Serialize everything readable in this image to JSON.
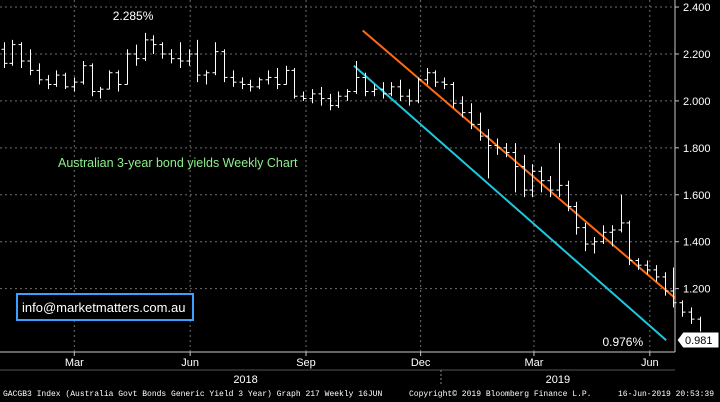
{
  "chart_data": {
    "type": "ohlc",
    "title": "Australian 3-year bond yields Weekly Chart",
    "xlabel": "",
    "ylabel": "",
    "ylim": [
      0.93,
      2.43
    ],
    "grid": true,
    "y_ticks": [
      "1.200",
      "1.400",
      "1.600",
      "1.800",
      "2.000",
      "2.200",
      "2.400"
    ],
    "y_tick_values": [
      1.2,
      1.4,
      1.6,
      1.8,
      2.0,
      2.2,
      2.4
    ],
    "x_ticks": [
      "Mar",
      "Jun",
      "Sep",
      "Dec",
      "Mar",
      "Jun"
    ],
    "x_tick_dates": [
      "2018-03-01",
      "2018-06-01",
      "2018-09-01",
      "2018-12-01",
      "2019-03-01",
      "2019-06-01"
    ],
    "year_labels": [
      {
        "label": "2018",
        "date": "2018-07-15"
      },
      {
        "label": "2019",
        "date": "2019-03-20"
      }
    ],
    "x_range": [
      "2018-01-01",
      "2019-06-21"
    ],
    "series_color": "#ffffff",
    "weeks_start": "2018-01-01",
    "bars": [
      [
        2.22,
        2.25,
        2.14,
        2.16
      ],
      [
        2.16,
        2.26,
        2.15,
        2.24
      ],
      [
        2.24,
        2.25,
        2.14,
        2.17
      ],
      [
        2.17,
        2.22,
        2.11,
        2.13
      ],
      [
        2.13,
        2.16,
        2.07,
        2.09
      ],
      [
        2.09,
        2.11,
        2.05,
        2.07
      ],
      [
        2.07,
        2.13,
        2.06,
        2.11
      ],
      [
        2.11,
        2.12,
        2.05,
        2.06
      ],
      [
        2.06,
        2.1,
        2.04,
        2.08
      ],
      [
        2.08,
        2.17,
        2.07,
        2.15
      ],
      [
        2.15,
        2.16,
        2.02,
        2.04
      ],
      [
        2.04,
        2.06,
        2.01,
        2.05
      ],
      [
        2.05,
        2.13,
        2.05,
        2.12
      ],
      [
        2.12,
        2.13,
        2.04,
        2.07
      ],
      [
        2.07,
        2.22,
        2.07,
        2.2
      ],
      [
        2.2,
        2.24,
        2.15,
        2.18
      ],
      [
        2.18,
        2.29,
        2.17,
        2.26
      ],
      [
        2.26,
        2.28,
        2.2,
        2.24
      ],
      [
        2.24,
        2.25,
        2.18,
        2.2
      ],
      [
        2.2,
        2.22,
        2.16,
        2.18
      ],
      [
        2.18,
        2.25,
        2.14,
        2.17
      ],
      [
        2.17,
        2.22,
        2.15,
        2.2
      ],
      [
        2.2,
        2.26,
        2.08,
        2.11
      ],
      [
        2.11,
        2.13,
        2.07,
        2.12
      ],
      [
        2.12,
        2.25,
        2.11,
        2.21
      ],
      [
        2.21,
        2.22,
        2.08,
        2.1
      ],
      [
        2.1,
        2.13,
        2.06,
        2.08
      ],
      [
        2.08,
        2.1,
        2.05,
        2.07
      ],
      [
        2.07,
        2.09,
        2.04,
        2.06
      ],
      [
        2.06,
        2.1,
        2.05,
        2.09
      ],
      [
        2.09,
        2.13,
        2.07,
        2.1
      ],
      [
        2.1,
        2.14,
        2.05,
        2.07
      ],
      [
        2.07,
        2.15,
        2.07,
        2.13
      ],
      [
        2.13,
        2.14,
        2.01,
        2.02
      ],
      [
        2.02,
        2.04,
        2.0,
        2.01
      ],
      [
        2.01,
        2.05,
        1.99,
        2.03
      ],
      [
        2.03,
        2.06,
        1.98,
        2.01
      ],
      [
        2.01,
        2.03,
        1.96,
        1.98
      ],
      [
        1.98,
        2.04,
        1.97,
        2.02
      ],
      [
        2.02,
        2.05,
        2.0,
        2.04
      ],
      [
        2.04,
        2.17,
        2.03,
        2.1
      ],
      [
        2.1,
        2.12,
        2.02,
        2.04
      ],
      [
        2.04,
        2.07,
        2.02,
        2.05
      ],
      [
        2.05,
        2.08,
        2.01,
        2.03
      ],
      [
        2.03,
        2.08,
        2.02,
        2.06
      ],
      [
        2.06,
        2.09,
        2.0,
        2.02
      ],
      [
        2.02,
        2.05,
        1.98,
        2.0
      ],
      [
        2.0,
        2.1,
        1.99,
        2.09
      ],
      [
        2.09,
        2.14,
        2.07,
        2.12
      ],
      [
        2.12,
        2.13,
        2.06,
        2.08
      ],
      [
        2.08,
        2.1,
        2.05,
        2.07
      ],
      [
        2.07,
        2.08,
        1.97,
        1.99
      ],
      [
        1.99,
        2.02,
        1.93,
        1.95
      ],
      [
        1.95,
        1.99,
        1.88,
        1.9
      ],
      [
        1.9,
        1.95,
        1.83,
        1.85
      ],
      [
        1.85,
        1.88,
        1.67,
        1.81
      ],
      [
        1.81,
        1.84,
        1.77,
        1.8
      ],
      [
        1.8,
        1.82,
        1.76,
        1.78
      ],
      [
        1.78,
        1.82,
        1.61,
        1.72
      ],
      [
        1.72,
        1.77,
        1.59,
        1.62
      ],
      [
        1.62,
        1.73,
        1.59,
        1.7
      ],
      [
        1.7,
        1.72,
        1.61,
        1.66
      ],
      [
        1.66,
        1.68,
        1.59,
        1.62
      ],
      [
        1.62,
        1.82,
        1.59,
        1.64
      ],
      [
        1.64,
        1.66,
        1.53,
        1.55
      ],
      [
        1.55,
        1.57,
        1.43,
        1.46
      ],
      [
        1.46,
        1.48,
        1.36,
        1.39
      ],
      [
        1.39,
        1.42,
        1.35,
        1.4
      ],
      [
        1.4,
        1.47,
        1.39,
        1.44
      ],
      [
        1.44,
        1.47,
        1.38,
        1.45
      ],
      [
        1.45,
        1.6,
        1.44,
        1.48
      ],
      [
        1.48,
        1.49,
        1.3,
        1.32
      ],
      [
        1.32,
        1.33,
        1.28,
        1.3
      ],
      [
        1.3,
        1.32,
        1.26,
        1.28
      ],
      [
        1.28,
        1.3,
        1.23,
        1.25
      ],
      [
        1.25,
        1.27,
        1.17,
        1.19
      ],
      [
        1.19,
        1.29,
        1.12,
        1.14
      ],
      [
        1.14,
        1.15,
        1.08,
        1.1
      ],
      [
        1.1,
        1.12,
        1.05,
        1.07
      ],
      [
        1.07,
        1.08,
        0.976,
        0.981
      ]
    ],
    "trendlines": [
      {
        "name": "upper resistance",
        "color": "#ff6a13",
        "from": {
          "date": "2018-10-16",
          "y": 2.3
        },
        "to": {
          "date": "2019-06-21",
          "y": 1.16
        }
      },
      {
        "name": "lower support",
        "color": "#1ec8e0",
        "from": {
          "date": "2018-10-09",
          "y": 2.15
        },
        "to": {
          "date": "2019-06-14",
          "y": 0.98
        }
      }
    ],
    "annotations": [
      {
        "text": "2.285%",
        "date": "2018-04-23",
        "y": 2.285,
        "color": "#ffffff"
      },
      {
        "text": "0.976%",
        "date": "2019-06-10",
        "y": 0.976,
        "color": "#ffffff"
      }
    ],
    "last_value": {
      "label": "0.981",
      "y": 0.981
    }
  },
  "chart_title": {
    "text": "Australian 3-year bond yields Weekly Chart",
    "color": "#8cf08c"
  },
  "contact_box": {
    "text": "info@marketmatters.com.au"
  },
  "footer": {
    "left": "GACGB3 Index (Australia Govt Bonds Generic Yield 3 Year) Graph 217  Weekly 16JUN",
    "mid": "Copyright© 2019 Bloomberg Finance L.P.",
    "right": "16-Jun-2019 20:53:39"
  }
}
